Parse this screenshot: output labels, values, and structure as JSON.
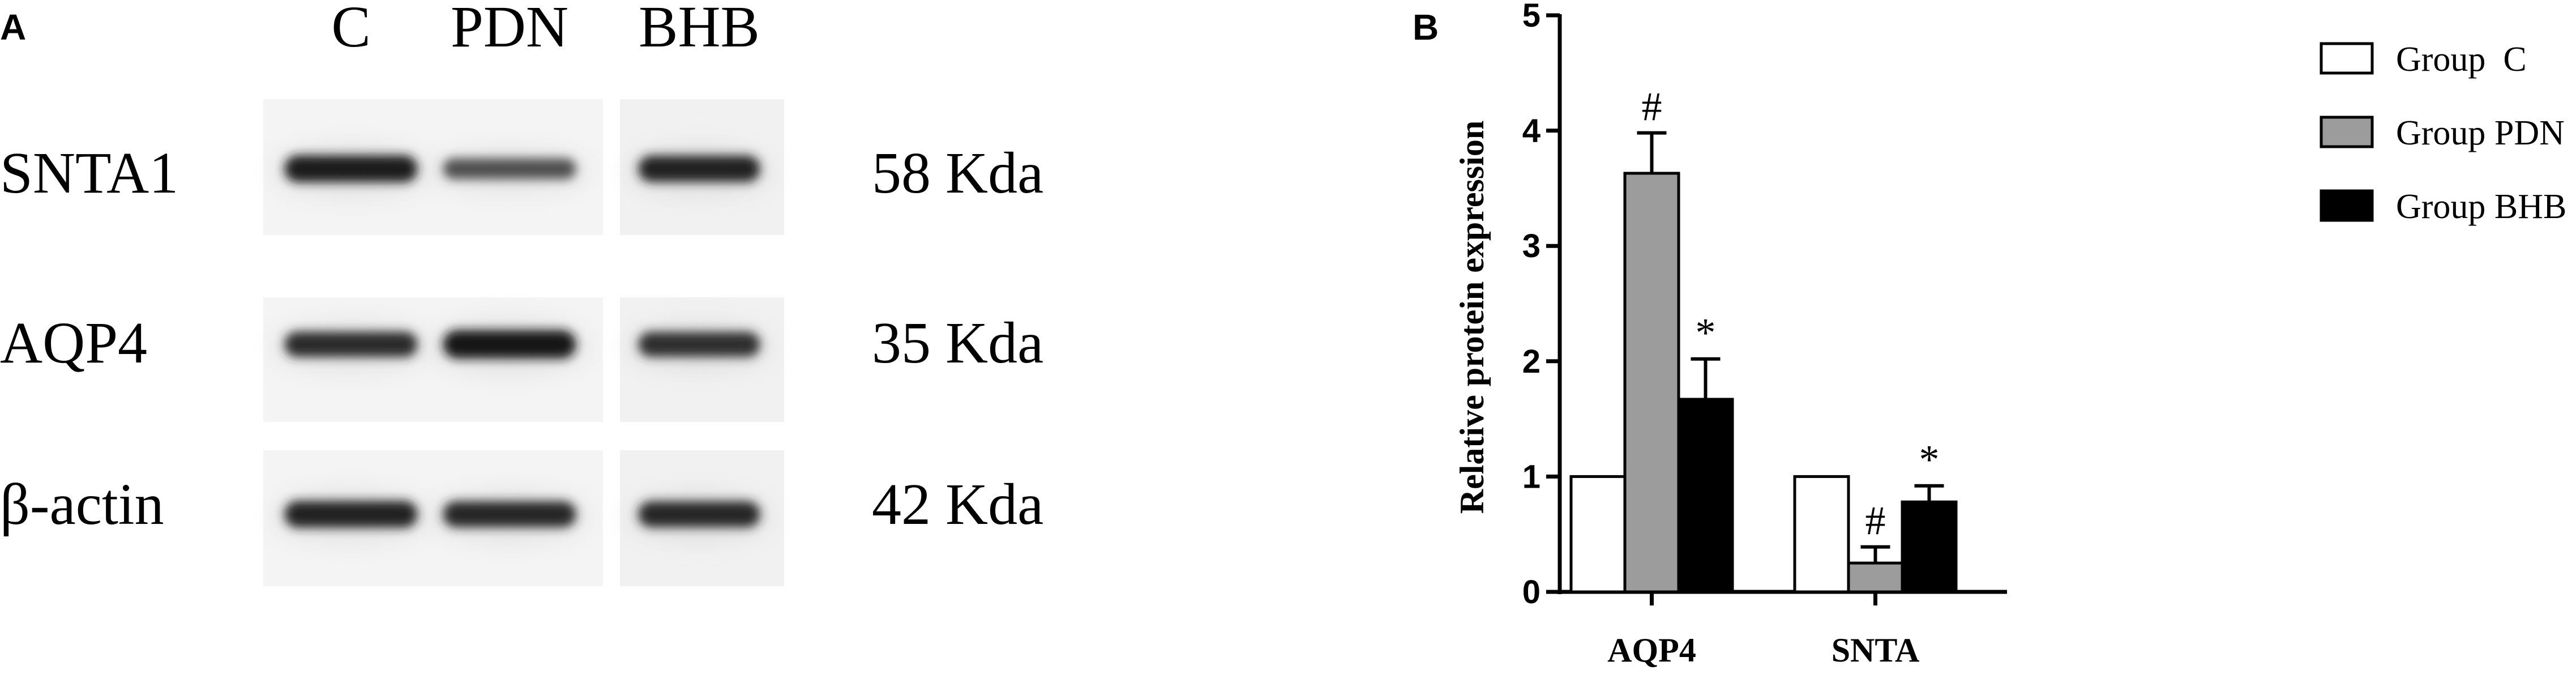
{
  "panel_a": {
    "letter": "A",
    "lanes": [
      "C",
      "PDN",
      "BHB"
    ],
    "rows": [
      {
        "protein": "SNTA1",
        "weight": "58 Kda",
        "intensity": [
          0.92,
          0.55,
          0.88
        ]
      },
      {
        "protein": "AQP4",
        "weight": "35 Kda",
        "intensity": [
          0.82,
          1.0,
          0.8
        ]
      },
      {
        "protein": "β-actin",
        "weight": "42 Kda",
        "intensity": [
          0.9,
          0.86,
          0.86
        ]
      }
    ]
  },
  "panel_b": {
    "letter": "B"
  },
  "chart_data": {
    "type": "bar",
    "categories": [
      "AQP4",
      "SNTA"
    ],
    "ylabel": "Relative protein expression",
    "xlabel": "",
    "ylim": [
      0,
      5
    ],
    "yticks": [
      0,
      1,
      2,
      3,
      4,
      5
    ],
    "grid": false,
    "legend_position": "right",
    "series": [
      {
        "name": "Group  C",
        "values": [
          1.0,
          1.0
        ],
        "errors": [
          0,
          0
        ],
        "marks": [
          "",
          ""
        ],
        "color": "#ffffff"
      },
      {
        "name": "Group PDN",
        "values": [
          3.63,
          0.25
        ],
        "errors": [
          0.35,
          0.14
        ],
        "marks": [
          "#",
          "#"
        ],
        "color": "#9c9c9c"
      },
      {
        "name": "Group BHB",
        "values": [
          1.67,
          0.78
        ],
        "errors": [
          0.35,
          0.14
        ],
        "marks": [
          "*",
          "*"
        ],
        "color": "#000000"
      }
    ]
  }
}
